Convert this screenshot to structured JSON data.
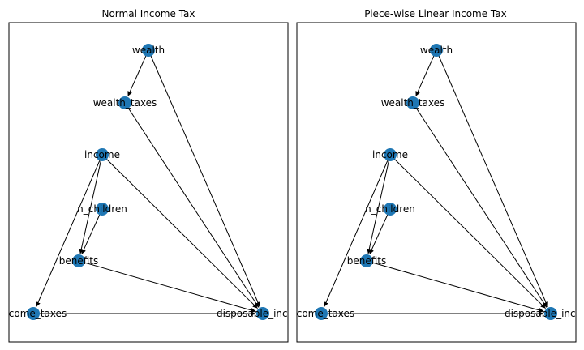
{
  "panels": [
    {
      "title": "Normal Income Tax",
      "nodes": [
        {
          "id": "wealth",
          "label": "wealth"
        },
        {
          "id": "wealth_taxes",
          "label": "wealth_taxes"
        },
        {
          "id": "income",
          "label": "income"
        },
        {
          "id": "n_children",
          "label": "n_children"
        },
        {
          "id": "benefits",
          "label": "benefits"
        },
        {
          "id": "income_taxes",
          "label": "income_taxes"
        },
        {
          "id": "disposable_income",
          "label": "disposable_income"
        }
      ],
      "edges": [
        [
          "wealth",
          "wealth_taxes"
        ],
        [
          "wealth",
          "disposable_income"
        ],
        [
          "wealth_taxes",
          "disposable_income"
        ],
        [
          "income",
          "benefits"
        ],
        [
          "income",
          "income_taxes"
        ],
        [
          "income",
          "disposable_income"
        ],
        [
          "n_children",
          "benefits"
        ],
        [
          "benefits",
          "disposable_income"
        ],
        [
          "income_taxes",
          "disposable_income"
        ]
      ]
    },
    {
      "title": "Piece-wise Linear Income Tax",
      "nodes": [
        {
          "id": "wealth",
          "label": "wealth"
        },
        {
          "id": "wealth_taxes",
          "label": "wealth_taxes"
        },
        {
          "id": "income",
          "label": "income"
        },
        {
          "id": "n_children",
          "label": "n_children"
        },
        {
          "id": "benefits",
          "label": "benefits"
        },
        {
          "id": "income_taxes",
          "label": "income_taxes"
        },
        {
          "id": "disposable_income",
          "label": "disposable_income"
        }
      ],
      "edges": [
        [
          "wealth",
          "wealth_taxes"
        ],
        [
          "wealth",
          "disposable_income"
        ],
        [
          "wealth_taxes",
          "disposable_income"
        ],
        [
          "income",
          "benefits"
        ],
        [
          "income",
          "income_taxes"
        ],
        [
          "income",
          "disposable_income"
        ],
        [
          "n_children",
          "benefits"
        ],
        [
          "benefits",
          "disposable_income"
        ],
        [
          "income_taxes",
          "disposable_income"
        ]
      ]
    }
  ],
  "colors": {
    "node": "#1f77b4",
    "edge": "#000000"
  }
}
